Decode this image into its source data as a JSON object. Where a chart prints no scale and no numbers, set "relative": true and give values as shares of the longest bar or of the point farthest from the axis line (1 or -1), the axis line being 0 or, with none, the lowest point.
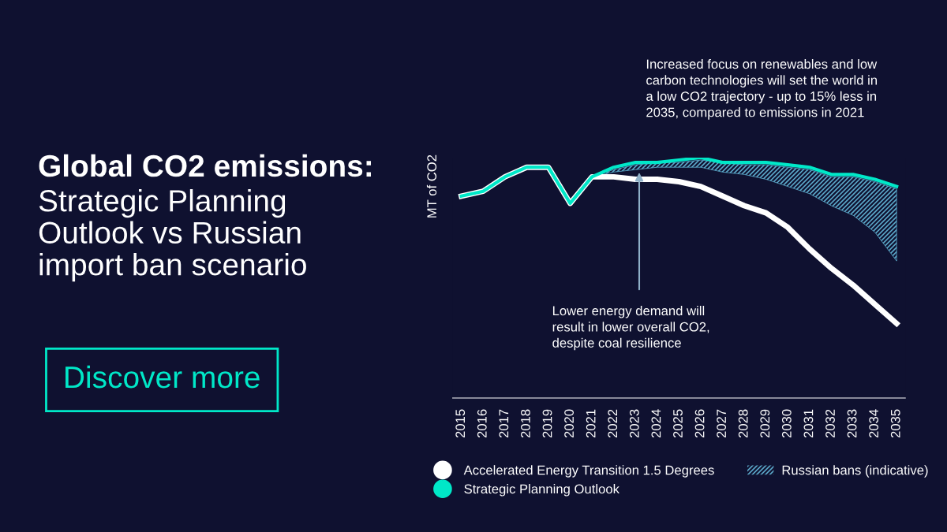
{
  "chart_data": {
    "type": "line",
    "title": "Global CO2 emissions:",
    "subtitle": "Strategic Planning Outlook vs Russian import ban scenario",
    "ylabel": "MT of CO2",
    "relative": true,
    "grid": false,
    "legend": "bottom",
    "marker": "none",
    "line_style": "solid",
    "categories": [
      "2015",
      "2016",
      "2017",
      "2018",
      "2019",
      "2020",
      "2021",
      "2022",
      "2023",
      "2024",
      "2025",
      "2026",
      "2027",
      "2028",
      "2029",
      "2030",
      "2031",
      "2032",
      "2033",
      "2034",
      "2035"
    ],
    "series": [
      {
        "name": "Accelerated Energy Transition 1.5 Degrees",
        "color": "#ffffff",
        "values": [
          0.84,
          0.86,
          0.92,
          0.96,
          0.96,
          0.81,
          0.92,
          0.92,
          0.91,
          0.91,
          0.9,
          0.88,
          0.84,
          0.8,
          0.77,
          0.71,
          0.62,
          0.54,
          0.47,
          0.39,
          0.31
        ]
      },
      {
        "name": "Strategic Planning Outlook",
        "color": "#00e8c8",
        "values": [
          0.84,
          0.86,
          0.92,
          0.96,
          0.96,
          0.81,
          0.92,
          0.96,
          0.98,
          0.98,
          0.99,
          1.0,
          0.98,
          0.98,
          0.98,
          0.97,
          0.96,
          0.93,
          0.93,
          0.91,
          0.88
        ]
      },
      {
        "name": "Russian bans (indicative)",
        "type": "area",
        "color": "#5aa7c8",
        "lower": [
          null,
          null,
          null,
          null,
          null,
          null,
          0.92,
          0.94,
          0.95,
          0.96,
          0.96,
          0.96,
          0.94,
          0.93,
          0.91,
          0.88,
          0.85,
          0.8,
          0.76,
          0.69,
          0.57
        ],
        "values": [
          null,
          null,
          null,
          null,
          null,
          null,
          null,
          null,
          null,
          null,
          null,
          null,
          null,
          null,
          null,
          null,
          null,
          null,
          null,
          null,
          null
        ],
        "upper": [
          null,
          null,
          null,
          null,
          null,
          null,
          0.92,
          0.95,
          0.97,
          0.98,
          0.98,
          0.99,
          0.98,
          0.97,
          0.97,
          0.96,
          0.95,
          0.92,
          0.92,
          0.9,
          0.87
        ]
      }
    ],
    "annotations": [
      "Increased focus on renewables and low carbon technologies will set the world in a low CO2 trajectory - up to 15% less in 2035, compared to emissions in 2021",
      "Lower energy demand will result in lower overall CO2, despite coal resilience",
      "Discover more"
    ]
  }
}
